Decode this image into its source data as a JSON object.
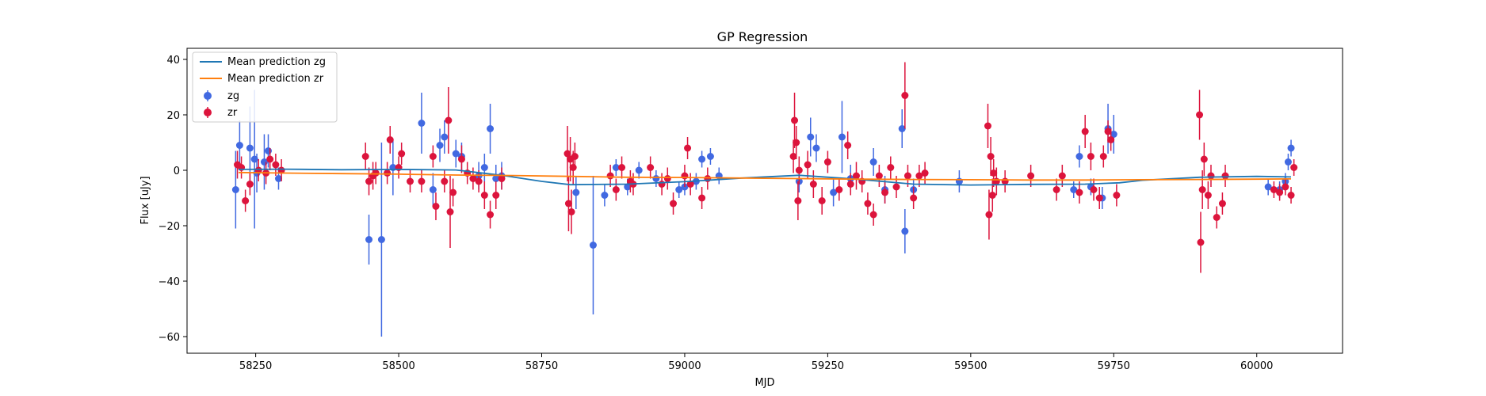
{
  "chart_data": {
    "type": "scatter",
    "title": "GP Regression",
    "xlabel": "MJD",
    "ylabel": "Flux [uJy]",
    "xlim": [
      58130,
      60150
    ],
    "ylim": [
      -66,
      44
    ],
    "xticks": [
      58250,
      58500,
      58750,
      59000,
      59250,
      59500,
      59750,
      60000
    ],
    "yticks": [
      -60,
      -40,
      -20,
      0,
      20,
      40
    ],
    "grid": false,
    "legend_position": "top-left",
    "colors": {
      "zg": "#4169e1",
      "zr": "#dc143c",
      "mean_zg": "#1f77b4",
      "mean_zr": "#ff7f0e"
    },
    "series": [
      {
        "name": "Mean prediction zg",
        "kind": "line",
        "x": [
          58220,
          58300,
          58400,
          58500,
          58600,
          58680,
          58750,
          58800,
          58900,
          59000,
          59100,
          59200,
          59300,
          59400,
          59500,
          59600,
          59700,
          59760,
          59800,
          59900,
          60000,
          60060
        ],
        "y": [
          0.3,
          0.4,
          0.2,
          0.3,
          0.1,
          -1.8,
          -4.0,
          -5.2,
          -5.0,
          -4.1,
          -2.8,
          -1.8,
          -3.2,
          -5.0,
          -5.3,
          -5.1,
          -5.0,
          -4.5,
          -3.6,
          -2.5,
          -2.2,
          -2.4
        ]
      },
      {
        "name": "Mean prediction zr",
        "kind": "line",
        "x": [
          58220,
          58300,
          58400,
          58500,
          58600,
          58700,
          58800,
          58900,
          59000,
          59100,
          59200,
          59300,
          59400,
          59500,
          59600,
          59700,
          59800,
          59900,
          60000,
          60060
        ],
        "y": [
          -0.8,
          -1.0,
          -1.2,
          -1.4,
          -1.7,
          -1.9,
          -2.2,
          -2.5,
          -2.6,
          -2.8,
          -3.0,
          -3.2,
          -3.3,
          -3.4,
          -3.5,
          -3.5,
          -3.4,
          -3.3,
          -3.2,
          -3.1
        ]
      },
      {
        "name": "zg",
        "kind": "errorbar",
        "points": [
          [
            58215,
            -7,
            14
          ],
          [
            58222,
            9,
            9
          ],
          [
            58240,
            8,
            15
          ],
          [
            58248,
            4,
            25
          ],
          [
            58252,
            -1,
            7
          ],
          [
            58265,
            3,
            10
          ],
          [
            58272,
            7,
            6
          ],
          [
            58290,
            -3,
            4
          ],
          [
            58448,
            -25,
            9
          ],
          [
            58470,
            -25,
            35
          ],
          [
            58490,
            1,
            10
          ],
          [
            58540,
            17,
            11
          ],
          [
            58560,
            -7,
            6
          ],
          [
            58572,
            9,
            6
          ],
          [
            58580,
            12,
            6
          ],
          [
            58600,
            6,
            5
          ],
          [
            58610,
            5,
            5
          ],
          [
            58640,
            -2,
            5
          ],
          [
            58650,
            1,
            5
          ],
          [
            58660,
            15,
            9
          ],
          [
            58670,
            -3,
            5
          ],
          [
            58680,
            -2,
            5
          ],
          [
            58810,
            -8,
            6
          ],
          [
            58840,
            -27,
            25
          ],
          [
            58860,
            -9,
            4
          ],
          [
            58880,
            1,
            3
          ],
          [
            58900,
            -6,
            3
          ],
          [
            58920,
            0,
            3
          ],
          [
            58950,
            -3,
            3
          ],
          [
            58990,
            -7,
            3
          ],
          [
            59000,
            -6,
            3
          ],
          [
            59020,
            -4,
            3
          ],
          [
            59030,
            4,
            3
          ],
          [
            59045,
            5,
            3
          ],
          [
            59060,
            -2,
            3
          ],
          [
            59200,
            -4,
            4
          ],
          [
            59220,
            12,
            7
          ],
          [
            59230,
            8,
            5
          ],
          [
            59260,
            -8,
            5
          ],
          [
            59275,
            12,
            13
          ],
          [
            59290,
            -3,
            5
          ],
          [
            59330,
            3,
            5
          ],
          [
            59350,
            -7,
            5
          ],
          [
            59380,
            15,
            7
          ],
          [
            59385,
            -22,
            8
          ],
          [
            59400,
            -7,
            4
          ],
          [
            59480,
            -4,
            4
          ],
          [
            59680,
            -7,
            3
          ],
          [
            59690,
            5,
            4
          ],
          [
            59710,
            -6,
            3
          ],
          [
            59730,
            -10,
            4
          ],
          [
            59740,
            15,
            9
          ],
          [
            59750,
            13,
            7
          ],
          [
            60020,
            -6,
            3
          ],
          [
            60040,
            -7,
            3
          ],
          [
            60050,
            -4,
            3
          ],
          [
            60055,
            3,
            3
          ],
          [
            60060,
            8,
            3
          ]
        ]
      },
      {
        "name": "zr",
        "kind": "errorbar",
        "points": [
          [
            58218,
            2,
            5
          ],
          [
            58225,
            1,
            4
          ],
          [
            58232,
            -11,
            4
          ],
          [
            58240,
            -5,
            4
          ],
          [
            58255,
            0,
            4
          ],
          [
            58268,
            -1,
            4
          ],
          [
            58275,
            4,
            4
          ],
          [
            58285,
            2,
            4
          ],
          [
            58295,
            0,
            4
          ],
          [
            58442,
            5,
            5
          ],
          [
            58448,
            -4,
            5
          ],
          [
            58455,
            -2,
            5
          ],
          [
            58460,
            -1,
            4
          ],
          [
            58480,
            -1,
            4
          ],
          [
            58485,
            11,
            5
          ],
          [
            58500,
            1,
            4
          ],
          [
            58505,
            6,
            4
          ],
          [
            58520,
            -4,
            4
          ],
          [
            58540,
            -4,
            4
          ],
          [
            58560,
            5,
            4
          ],
          [
            58565,
            -13,
            5
          ],
          [
            58580,
            -4,
            4
          ],
          [
            58587,
            18,
            12
          ],
          [
            58590,
            -15,
            13
          ],
          [
            58595,
            -8,
            5
          ],
          [
            58610,
            4,
            5
          ],
          [
            58620,
            -1,
            4
          ],
          [
            58630,
            -3,
            4
          ],
          [
            58640,
            -4,
            4
          ],
          [
            58650,
            -9,
            5
          ],
          [
            58660,
            -16,
            5
          ],
          [
            58670,
            -9,
            5
          ],
          [
            58680,
            -3,
            4
          ],
          [
            58795,
            6,
            10
          ],
          [
            58797,
            -12,
            10
          ],
          [
            58800,
            4,
            8
          ],
          [
            58802,
            -15,
            8
          ],
          [
            58805,
            1,
            6
          ],
          [
            58808,
            5,
            5
          ],
          [
            58870,
            -2,
            4
          ],
          [
            58880,
            -7,
            4
          ],
          [
            58890,
            1,
            4
          ],
          [
            58905,
            -4,
            4
          ],
          [
            58910,
            -5,
            4
          ],
          [
            58940,
            1,
            4
          ],
          [
            58960,
            -5,
            4
          ],
          [
            58970,
            -3,
            4
          ],
          [
            58980,
            -12,
            4
          ],
          [
            59000,
            -2,
            4
          ],
          [
            59005,
            8,
            4
          ],
          [
            59010,
            -5,
            4
          ],
          [
            59030,
            -10,
            4
          ],
          [
            59040,
            -3,
            4
          ],
          [
            59190,
            5,
            6
          ],
          [
            59192,
            18,
            10
          ],
          [
            59195,
            10,
            6
          ],
          [
            59198,
            -11,
            7
          ],
          [
            59200,
            0,
            5
          ],
          [
            59215,
            2,
            5
          ],
          [
            59225,
            -5,
            5
          ],
          [
            59240,
            -11,
            5
          ],
          [
            59250,
            3,
            4
          ],
          [
            59270,
            -7,
            4
          ],
          [
            59285,
            9,
            5
          ],
          [
            59290,
            -5,
            4
          ],
          [
            59300,
            -2,
            5
          ],
          [
            59310,
            -4,
            4
          ],
          [
            59320,
            -12,
            4
          ],
          [
            59330,
            -16,
            4
          ],
          [
            59340,
            -2,
            4
          ],
          [
            59350,
            -8,
            4
          ],
          [
            59360,
            1,
            4
          ],
          [
            59370,
            -6,
            4
          ],
          [
            59385,
            27,
            12
          ],
          [
            59390,
            -2,
            4
          ],
          [
            59400,
            -10,
            4
          ],
          [
            59410,
            -2,
            4
          ],
          [
            59420,
            -1,
            4
          ],
          [
            59530,
            16,
            8
          ],
          [
            59532,
            -16,
            9
          ],
          [
            59535,
            5,
            7
          ],
          [
            59538,
            -9,
            6
          ],
          [
            59540,
            -1,
            5
          ],
          [
            59545,
            -4,
            5
          ],
          [
            59560,
            -4,
            4
          ],
          [
            59605,
            -2,
            4
          ],
          [
            59650,
            -7,
            4
          ],
          [
            59660,
            -2,
            4
          ],
          [
            59690,
            -8,
            4
          ],
          [
            59700,
            14,
            6
          ],
          [
            59710,
            5,
            5
          ],
          [
            59715,
            -7,
            4
          ],
          [
            59725,
            -10,
            4
          ],
          [
            59732,
            5,
            4
          ],
          [
            59740,
            14,
            4
          ],
          [
            59745,
            11,
            4
          ],
          [
            59755,
            -9,
            4
          ],
          [
            59900,
            20,
            9
          ],
          [
            59902,
            -26,
            11
          ],
          [
            59905,
            -7,
            7
          ],
          [
            59908,
            4,
            6
          ],
          [
            59915,
            -9,
            5
          ],
          [
            59920,
            -2,
            4
          ],
          [
            59930,
            -17,
            4
          ],
          [
            59940,
            -12,
            4
          ],
          [
            59945,
            -2,
            4
          ],
          [
            60030,
            -7,
            3
          ],
          [
            60040,
            -8,
            3
          ],
          [
            60050,
            -6,
            3
          ],
          [
            60060,
            -9,
            3
          ],
          [
            60065,
            1,
            3
          ]
        ]
      }
    ]
  }
}
